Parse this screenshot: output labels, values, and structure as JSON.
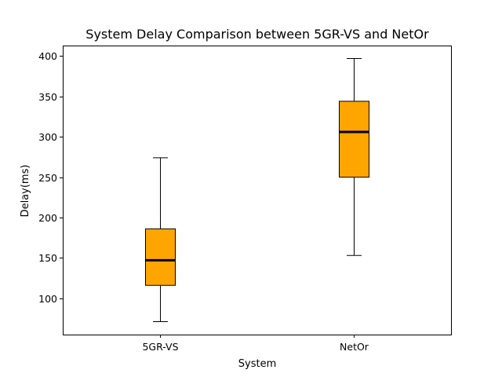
{
  "chart_data": {
    "type": "box",
    "title": "System Delay Comparison between 5GR-VS and NetOr",
    "xlabel": "System",
    "ylabel": "Delay(ms)",
    "categories": [
      "5GR-VS",
      "NetOr"
    ],
    "boxes": [
      {
        "category": "5GR-VS",
        "whisker_low": 71,
        "q1": 116,
        "median": 147,
        "q3": 186,
        "whisker_high": 274
      },
      {
        "category": "NetOr",
        "whisker_low": 153,
        "q1": 250,
        "median": 306,
        "q3": 344,
        "whisker_high": 397
      }
    ],
    "ylim": [
      55,
      413
    ],
    "yticks": [
      100,
      150,
      200,
      250,
      300,
      350,
      400
    ],
    "grid": false,
    "legend": "none",
    "colors": {
      "box_fill": "#FFA500",
      "box_edge": "#000000",
      "median": "#000000"
    }
  }
}
